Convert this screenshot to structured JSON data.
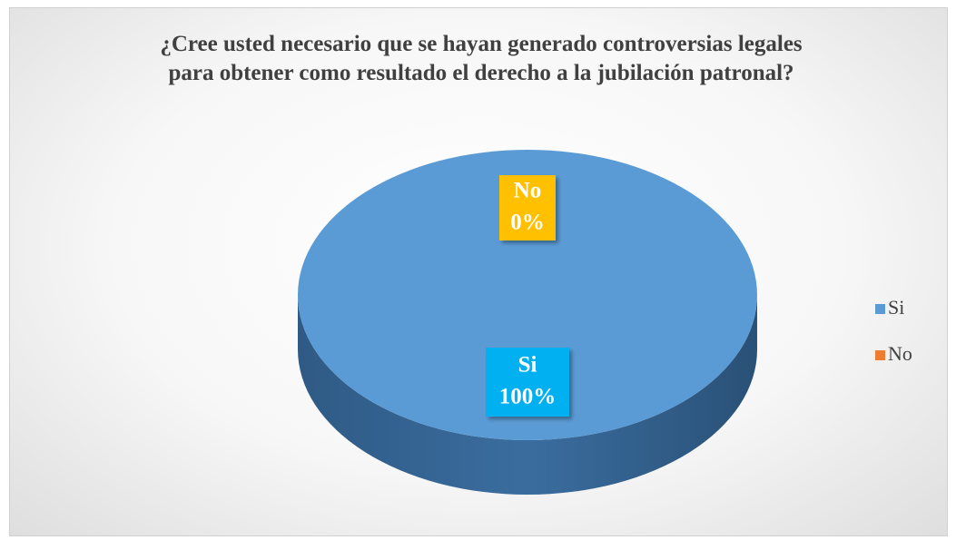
{
  "chart_data": {
    "type": "pie",
    "title": "¿Cree usted necesario que se hayan generado controversias legales para obtener como resultado el derecho a la jubilación patronal?",
    "categories": [
      "Si",
      "No"
    ],
    "values": [
      100,
      0
    ],
    "value_labels": [
      "100%",
      "0%"
    ],
    "colors": [
      "#5b9bd5",
      "#ed7d31"
    ],
    "label_colors": [
      "#00b0f0",
      "#ffc000"
    ],
    "legend": "right"
  }
}
